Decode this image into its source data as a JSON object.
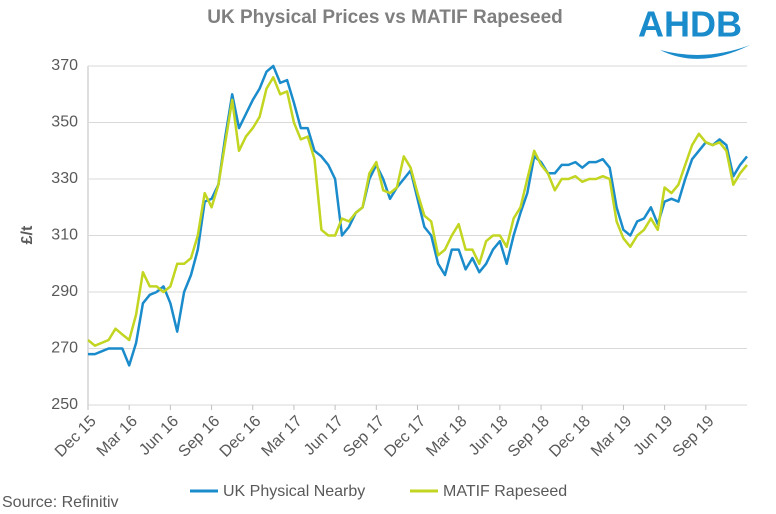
{
  "chart_data": {
    "type": "line",
    "title": "UK Physical Prices vs MATIF Rapeseed",
    "y_label": "£/t",
    "categories": [
      "Dec 15",
      null,
      null,
      null,
      null,
      null,
      "Mar 16",
      null,
      null,
      null,
      null,
      null,
      "Jun 16",
      null,
      null,
      null,
      null,
      null,
      "Sep 16",
      null,
      null,
      null,
      null,
      null,
      "Dec 16",
      null,
      null,
      null,
      null,
      null,
      "Mar 17",
      null,
      null,
      null,
      null,
      null,
      "Jun 17",
      null,
      null,
      null,
      null,
      null,
      "Sep 17",
      null,
      null,
      null,
      null,
      null,
      "Dec 17",
      null,
      null,
      null,
      null,
      null,
      "Mar 18",
      null,
      null,
      null,
      null,
      null,
      "Jun 18",
      null,
      null,
      null,
      null,
      null,
      "Sep 18",
      null,
      null,
      null,
      null,
      null,
      "Dec 18",
      null,
      null,
      null,
      null,
      null,
      "Mar 19",
      null,
      null,
      null,
      null,
      null,
      "Jun 19",
      null,
      null,
      null,
      null,
      null,
      "Sep 19",
      null,
      null,
      null,
      null,
      null,
      null
    ],
    "series": [
      {
        "name": "UK Physical Nearby",
        "color": "#1a8bcb",
        "values": [
          268,
          268,
          269,
          270,
          270,
          270,
          264,
          272,
          286,
          289,
          290,
          292,
          286,
          276,
          290,
          296,
          305,
          322,
          323,
          328,
          345,
          360,
          348,
          353,
          358,
          362,
          368,
          370,
          364,
          365,
          357,
          348,
          348,
          340,
          338,
          335,
          330,
          310,
          313,
          318,
          320,
          330,
          335,
          330,
          323,
          327,
          330,
          333,
          323,
          313,
          310,
          300,
          296,
          305,
          305,
          298,
          302,
          297,
          300,
          305,
          308,
          300,
          310,
          318,
          325,
          338,
          336,
          332,
          332,
          335,
          335,
          336,
          334,
          336,
          336,
          337,
          334,
          320,
          312,
          310,
          315,
          316,
          320,
          314,
          322,
          323,
          322,
          330,
          337,
          340,
          343,
          342,
          344,
          342,
          331,
          335,
          338
        ]
      },
      {
        "name": "MATIF Rapeseed",
        "color": "#c2d520",
        "values": [
          273,
          271,
          272,
          273,
          277,
          275,
          273,
          282,
          297,
          292,
          292,
          290,
          292,
          300,
          300,
          302,
          310,
          325,
          320,
          328,
          343,
          358,
          340,
          345,
          348,
          352,
          362,
          366,
          360,
          361,
          350,
          344,
          345,
          337,
          312,
          310,
          310,
          316,
          315,
          318,
          320,
          332,
          336,
          326,
          325,
          327,
          338,
          334,
          325,
          317,
          315,
          303,
          305,
          310,
          314,
          305,
          305,
          300,
          308,
          310,
          310,
          306,
          316,
          320,
          330,
          340,
          335,
          332,
          326,
          330,
          330,
          331,
          329,
          330,
          330,
          331,
          330,
          315,
          309,
          306,
          310,
          312,
          316,
          312,
          327,
          325,
          328,
          335,
          342,
          346,
          343,
          342,
          343,
          340,
          328,
          332,
          335
        ]
      }
    ],
    "ylim": [
      250,
      370
    ],
    "yticks": [
      250,
      270,
      290,
      310,
      330,
      350,
      370
    ],
    "grid": true,
    "legend": "bottom"
  },
  "source": "Source: Refinitiv",
  "logo": "AHDB"
}
